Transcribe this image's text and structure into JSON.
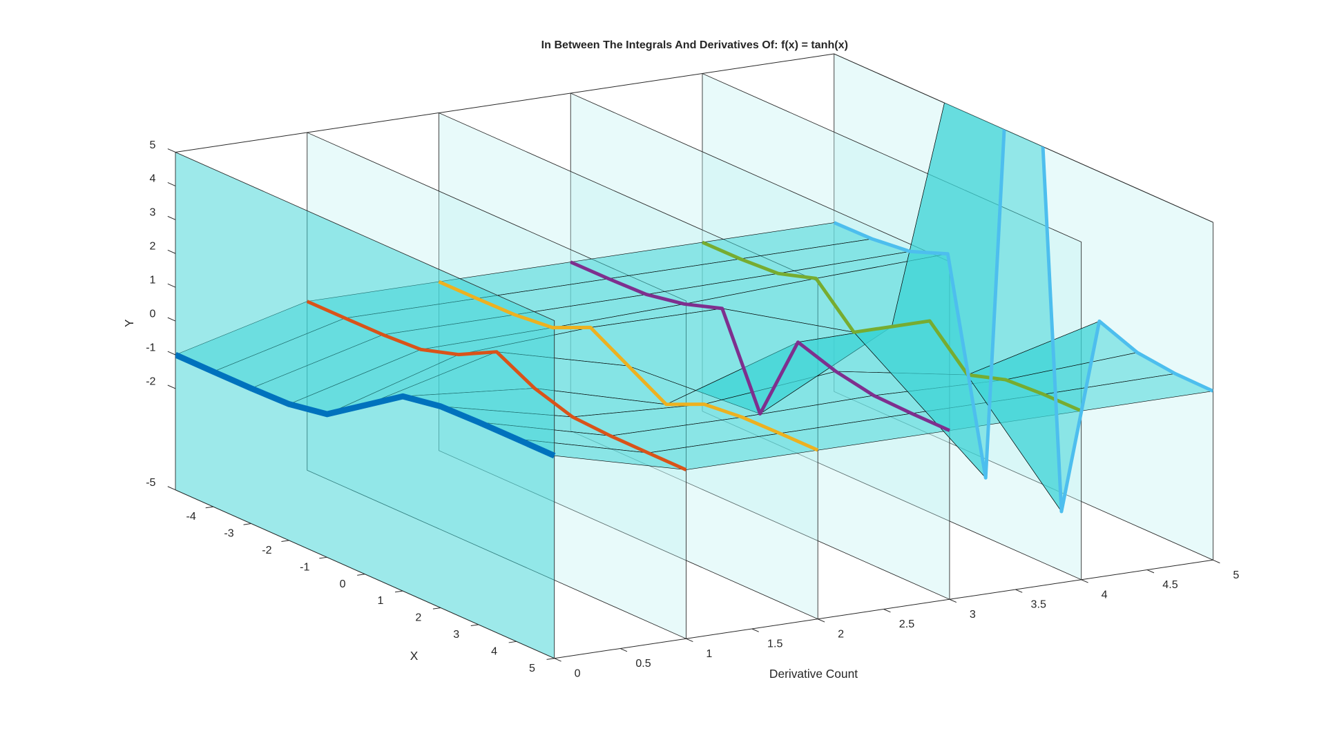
{
  "chart_data": {
    "type": "surface3d",
    "title": "In Between The Integrals And Derivatives Of: f(x) = tanh(x)",
    "xlabel": "X",
    "ylabel": "Y",
    "dlabel": "Derivative Count",
    "x": [
      -5,
      -4,
      -3,
      -2,
      -1,
      0,
      1,
      2,
      3,
      4,
      5
    ],
    "xlim": [
      -5,
      5
    ],
    "xticks": [
      -4,
      -3,
      -2,
      -1,
      0,
      1,
      2,
      3,
      4,
      5
    ],
    "dlim": [
      0,
      5
    ],
    "dticks": [
      0,
      0.5,
      1,
      1.5,
      2,
      2.5,
      3,
      3.5,
      4,
      4.5,
      5
    ],
    "ylim": [
      -5,
      5
    ],
    "yticks": [
      -5,
      -2,
      -1,
      0,
      1,
      2,
      3,
      4,
      5
    ],
    "surface_color": "#3cd3d6",
    "series": [
      {
        "derivative": 0,
        "color": "#0072bd",
        "values": [
          -1,
          -0.999,
          -0.995,
          -0.964,
          -0.762,
          0,
          0.762,
          0.964,
          0.995,
          0.999,
          1
        ]
      },
      {
        "derivative": 1,
        "color": "#d95319",
        "values": [
          0.0002,
          0.0013,
          0.0099,
          0.071,
          0.42,
          1,
          0.42,
          0.071,
          0.0099,
          0.0013,
          0.0002
        ]
      },
      {
        "derivative": 2,
        "color": "#edb120",
        "values": [
          0.0004,
          0.0027,
          0.0196,
          0.136,
          0.64,
          0,
          -0.64,
          -0.136,
          -0.0196,
          -0.0027,
          -0.0004
        ]
      },
      {
        "derivative": 3,
        "color": "#7e2f8e",
        "values": [
          0.0007,
          0.0053,
          0.0389,
          0.253,
          0.62,
          -2,
          0.62,
          0.253,
          0.0389,
          0.0053,
          0.0007
        ]
      },
      {
        "derivative": 4,
        "color": "#77ac30",
        "values": [
          0.0014,
          0.0107,
          0.076,
          0.43,
          -0.665,
          0,
          0.665,
          -0.43,
          -0.076,
          -0.0107,
          -0.0014
        ]
      },
      {
        "derivative": 5,
        "color": "#4dbeee",
        "values": [
          0.0029,
          0.0213,
          0.146,
          0.574,
          -5.56,
          16,
          -5.56,
          0.574,
          0.146,
          0.0213,
          0.0029
        ]
      }
    ]
  }
}
